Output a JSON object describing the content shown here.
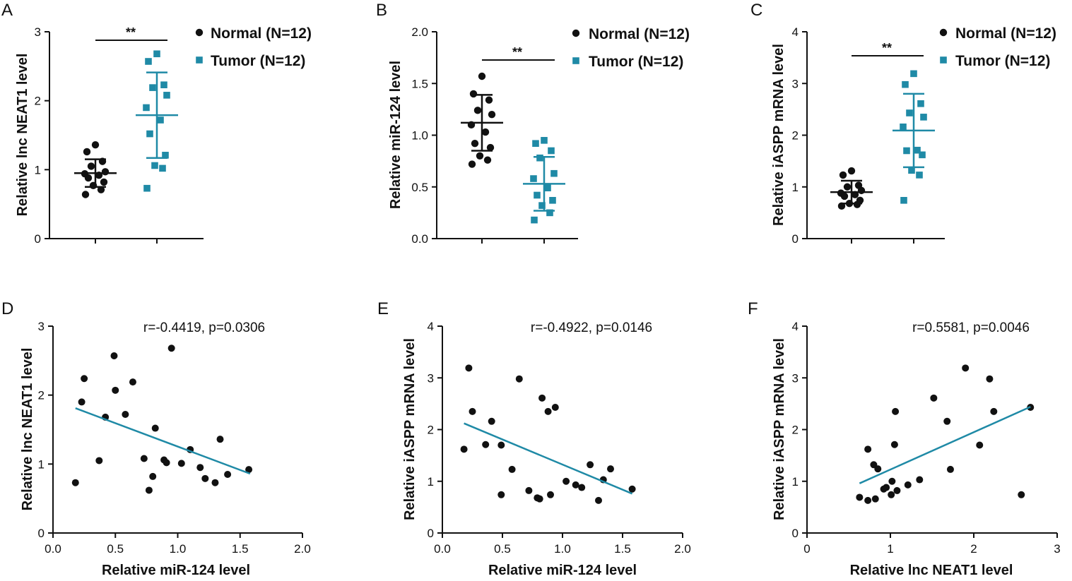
{
  "colors": {
    "normal": "#111111",
    "tumor": "#1f8aa6",
    "axis": "#111111"
  },
  "chart_data": [
    {
      "id": "A",
      "type": "scatter",
      "subtype": "dot-plot",
      "panel_label": "A",
      "ylabel": "Relative lnc NEAT1 level",
      "ylim": [
        0,
        3
      ],
      "yticks": [
        "0",
        "1",
        "2",
        "3"
      ],
      "significance": "**",
      "legend": [
        "Normal (N=12)",
        "Tumor (N=12)"
      ],
      "series": [
        {
          "name": "Normal (N=12)",
          "x": 1,
          "mean": 0.95,
          "sd": 0.2,
          "values": [
            1.36,
            1.26,
            1.12,
            1.05,
            0.97,
            0.94,
            0.92,
            0.88,
            0.82,
            0.77,
            0.71,
            0.64
          ]
        },
        {
          "name": "Tumor (N=12)",
          "x": 2,
          "mean": 1.79,
          "sd": 0.62,
          "values": [
            2.68,
            2.57,
            2.23,
            2.19,
            2.08,
            1.9,
            1.72,
            1.52,
            1.21,
            1.06,
            1.02,
            0.73
          ]
        }
      ]
    },
    {
      "id": "B",
      "type": "scatter",
      "subtype": "dot-plot",
      "panel_label": "B",
      "ylabel": "Relative miR-124 level",
      "ylim": [
        0,
        2
      ],
      "yticks": [
        "0.0",
        "0.5",
        "1.0",
        "1.5",
        "2.0"
      ],
      "significance": "**",
      "legend": [
        "Normal (N=12)",
        "Tumor (N=12)"
      ],
      "series": [
        {
          "name": "Normal (N=12)",
          "x": 1,
          "mean": 1.12,
          "sd": 0.27,
          "values": [
            1.57,
            1.4,
            1.34,
            1.24,
            1.2,
            1.1,
            1.03,
            0.92,
            0.88,
            0.8,
            0.76,
            0.72
          ]
        },
        {
          "name": "Tumor (N=12)",
          "x": 2,
          "mean": 0.53,
          "sd": 0.26,
          "values": [
            0.95,
            0.92,
            0.85,
            0.78,
            0.63,
            0.58,
            0.49,
            0.42,
            0.37,
            0.32,
            0.25,
            0.18
          ]
        }
      ]
    },
    {
      "id": "C",
      "type": "scatter",
      "subtype": "dot-plot",
      "panel_label": "C",
      "ylabel": "Relative iASPP mRNA level",
      "ylim": [
        0,
        4
      ],
      "yticks": [
        "0",
        "1",
        "2",
        "3",
        "4"
      ],
      "significance": "**",
      "legend": [
        "Normal (N=12)",
        "Tumor (N=12)"
      ],
      "series": [
        {
          "name": "Normal (N=12)",
          "x": 1,
          "mean": 0.9,
          "sd": 0.22,
          "values": [
            1.31,
            1.23,
            1.03,
            1.0,
            0.93,
            0.88,
            0.85,
            0.82,
            0.74,
            0.68,
            0.66,
            0.63
          ]
        },
        {
          "name": "Tumor (N=12)",
          "x": 2,
          "mean": 2.09,
          "sd": 0.71,
          "values": [
            3.19,
            2.98,
            2.61,
            2.43,
            2.35,
            2.16,
            1.71,
            1.7,
            1.62,
            1.32,
            1.23,
            0.74
          ]
        }
      ]
    },
    {
      "id": "D",
      "type": "scatter",
      "subtype": "correlation",
      "panel_label": "D",
      "xlabel": "Relative miR-124 level",
      "ylabel": "Relative lnc NEAT1 level",
      "xlim": [
        0,
        2
      ],
      "ylim": [
        0,
        3
      ],
      "xticks": [
        "0.0",
        "0.5",
        "1.0",
        "1.5",
        "2.0"
      ],
      "yticks": [
        "0",
        "1",
        "2",
        "3"
      ],
      "annotation": "r=-0.4419, p=0.0306",
      "fit": {
        "x1": 0.18,
        "y1": 1.81,
        "x2": 1.58,
        "y2": 0.86
      },
      "points": [
        [
          0.18,
          0.73
        ],
        [
          0.23,
          1.9
        ],
        [
          0.25,
          2.24
        ],
        [
          0.37,
          1.05
        ],
        [
          0.42,
          1.68
        ],
        [
          0.49,
          2.57
        ],
        [
          0.5,
          2.07
        ],
        [
          0.58,
          1.72
        ],
        [
          0.64,
          2.19
        ],
        [
          0.73,
          1.08
        ],
        [
          0.77,
          0.62
        ],
        [
          0.8,
          0.82
        ],
        [
          0.82,
          1.52
        ],
        [
          0.89,
          1.06
        ],
        [
          0.91,
          1.02
        ],
        [
          0.95,
          2.68
        ],
        [
          1.03,
          1.01
        ],
        [
          1.1,
          1.21
        ],
        [
          1.18,
          0.95
        ],
        [
          1.22,
          0.79
        ],
        [
          1.3,
          0.73
        ],
        [
          1.34,
          1.36
        ],
        [
          1.4,
          0.85
        ],
        [
          1.57,
          0.92
        ]
      ]
    },
    {
      "id": "E",
      "type": "scatter",
      "subtype": "correlation",
      "panel_label": "E",
      "xlabel": "Relative miR-124 level",
      "ylabel": "Relative iASPP mRNA level",
      "xlim": [
        0,
        2
      ],
      "ylim": [
        0,
        4
      ],
      "xticks": [
        "0.0",
        "0.5",
        "1.0",
        "1.5",
        "2.0"
      ],
      "yticks": [
        "0",
        "1",
        "2",
        "3",
        "4"
      ],
      "annotation": "r=-0.4922, p=0.0146",
      "fit": {
        "x1": 0.18,
        "y1": 2.12,
        "x2": 1.58,
        "y2": 0.76
      },
      "points": [
        [
          0.18,
          1.62
        ],
        [
          0.22,
          3.19
        ],
        [
          0.25,
          2.35
        ],
        [
          0.36,
          1.71
        ],
        [
          0.41,
          2.16
        ],
        [
          0.49,
          1.7
        ],
        [
          0.49,
          0.74
        ],
        [
          0.58,
          1.23
        ],
        [
          0.64,
          2.98
        ],
        [
          0.72,
          0.82
        ],
        [
          0.79,
          0.68
        ],
        [
          0.81,
          0.66
        ],
        [
          0.83,
          2.61
        ],
        [
          0.88,
          2.35
        ],
        [
          0.9,
          0.74
        ],
        [
          0.94,
          2.43
        ],
        [
          1.03,
          1.0
        ],
        [
          1.11,
          0.93
        ],
        [
          1.16,
          0.88
        ],
        [
          1.23,
          1.32
        ],
        [
          1.3,
          0.63
        ],
        [
          1.34,
          1.03
        ],
        [
          1.4,
          1.24
        ],
        [
          1.58,
          0.85
        ]
      ]
    },
    {
      "id": "F",
      "type": "scatter",
      "subtype": "correlation",
      "panel_label": "F",
      "xlabel": "Relative lnc NEAT1 level",
      "ylabel": "Relative iASPP mRNA level",
      "xlim": [
        0,
        3
      ],
      "ylim": [
        0,
        4
      ],
      "xticks": [
        "0",
        "1",
        "2",
        "3"
      ],
      "yticks": [
        "0",
        "1",
        "2",
        "3",
        "4"
      ],
      "annotation": "r=0.5581, p=0.0046",
      "fit": {
        "x1": 0.63,
        "y1": 0.96,
        "x2": 2.68,
        "y2": 2.44
      },
      "points": [
        [
          0.63,
          0.69
        ],
        [
          0.73,
          0.63
        ],
        [
          0.73,
          1.62
        ],
        [
          0.8,
          1.32
        ],
        [
          0.82,
          0.66
        ],
        [
          0.85,
          1.24
        ],
        [
          0.92,
          0.85
        ],
        [
          0.95,
          0.88
        ],
        [
          1.01,
          0.74
        ],
        [
          1.02,
          1.0
        ],
        [
          1.05,
          1.71
        ],
        [
          1.06,
          2.35
        ],
        [
          1.08,
          0.82
        ],
        [
          1.21,
          0.93
        ],
        [
          1.35,
          1.03
        ],
        [
          1.52,
          2.61
        ],
        [
          1.68,
          2.16
        ],
        [
          1.72,
          1.23
        ],
        [
          1.9,
          3.19
        ],
        [
          2.07,
          1.7
        ],
        [
          2.19,
          2.98
        ],
        [
          2.24,
          2.35
        ],
        [
          2.57,
          0.74
        ],
        [
          2.68,
          2.43
        ]
      ]
    }
  ]
}
